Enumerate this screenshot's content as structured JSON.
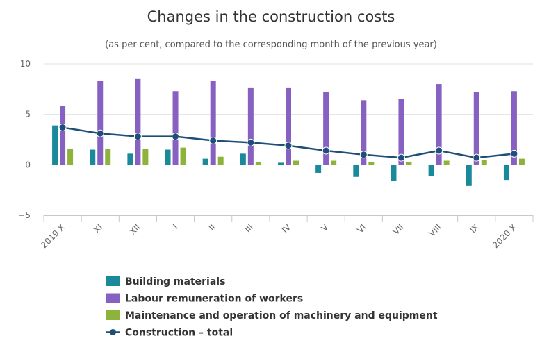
{
  "chart_data": {
    "type": "bar",
    "title": "Changes in the construction costs",
    "subtitle": "(as per cent, compared to the corresponding month of the previous year)",
    "categories": [
      "2019 X",
      "XI",
      "XII",
      "I",
      "II",
      "III",
      "IV",
      "V",
      "VI",
      "VII",
      "VIII",
      "IX",
      "2020 X"
    ],
    "ylim": [
      -5,
      10
    ],
    "yticks": [
      -5,
      0,
      5,
      10
    ],
    "ytick_labels": [
      "−5",
      "0",
      "5",
      "10"
    ],
    "grid": "horizontal",
    "legend_position": "bottom",
    "series": [
      {
        "name": "Building materials",
        "kind": "bar",
        "color": "#1a8a9a",
        "values": [
          3.9,
          1.5,
          1.1,
          1.5,
          0.6,
          1.1,
          0.2,
          -0.8,
          -1.2,
          -1.6,
          -1.1,
          -2.1,
          -1.5
        ]
      },
      {
        "name": "Labour remuneration of workers",
        "kind": "bar",
        "color": "#8661c1",
        "values": [
          5.8,
          8.3,
          8.5,
          7.3,
          8.3,
          7.6,
          7.6,
          7.2,
          6.4,
          6.5,
          8.0,
          7.2,
          7.3
        ]
      },
      {
        "name": "Maintenance and operation of machinery and equipment",
        "kind": "bar",
        "color": "#8db33a",
        "values": [
          1.6,
          1.6,
          1.6,
          1.7,
          0.8,
          0.3,
          0.4,
          0.4,
          0.3,
          0.3,
          0.4,
          0.5,
          0.6
        ]
      },
      {
        "name": "Construction – total",
        "kind": "line",
        "color": "#1f4e79",
        "values": [
          3.7,
          3.1,
          2.8,
          2.8,
          2.4,
          2.2,
          1.9,
          1.4,
          1.0,
          0.7,
          1.4,
          0.7,
          1.1
        ]
      }
    ]
  }
}
